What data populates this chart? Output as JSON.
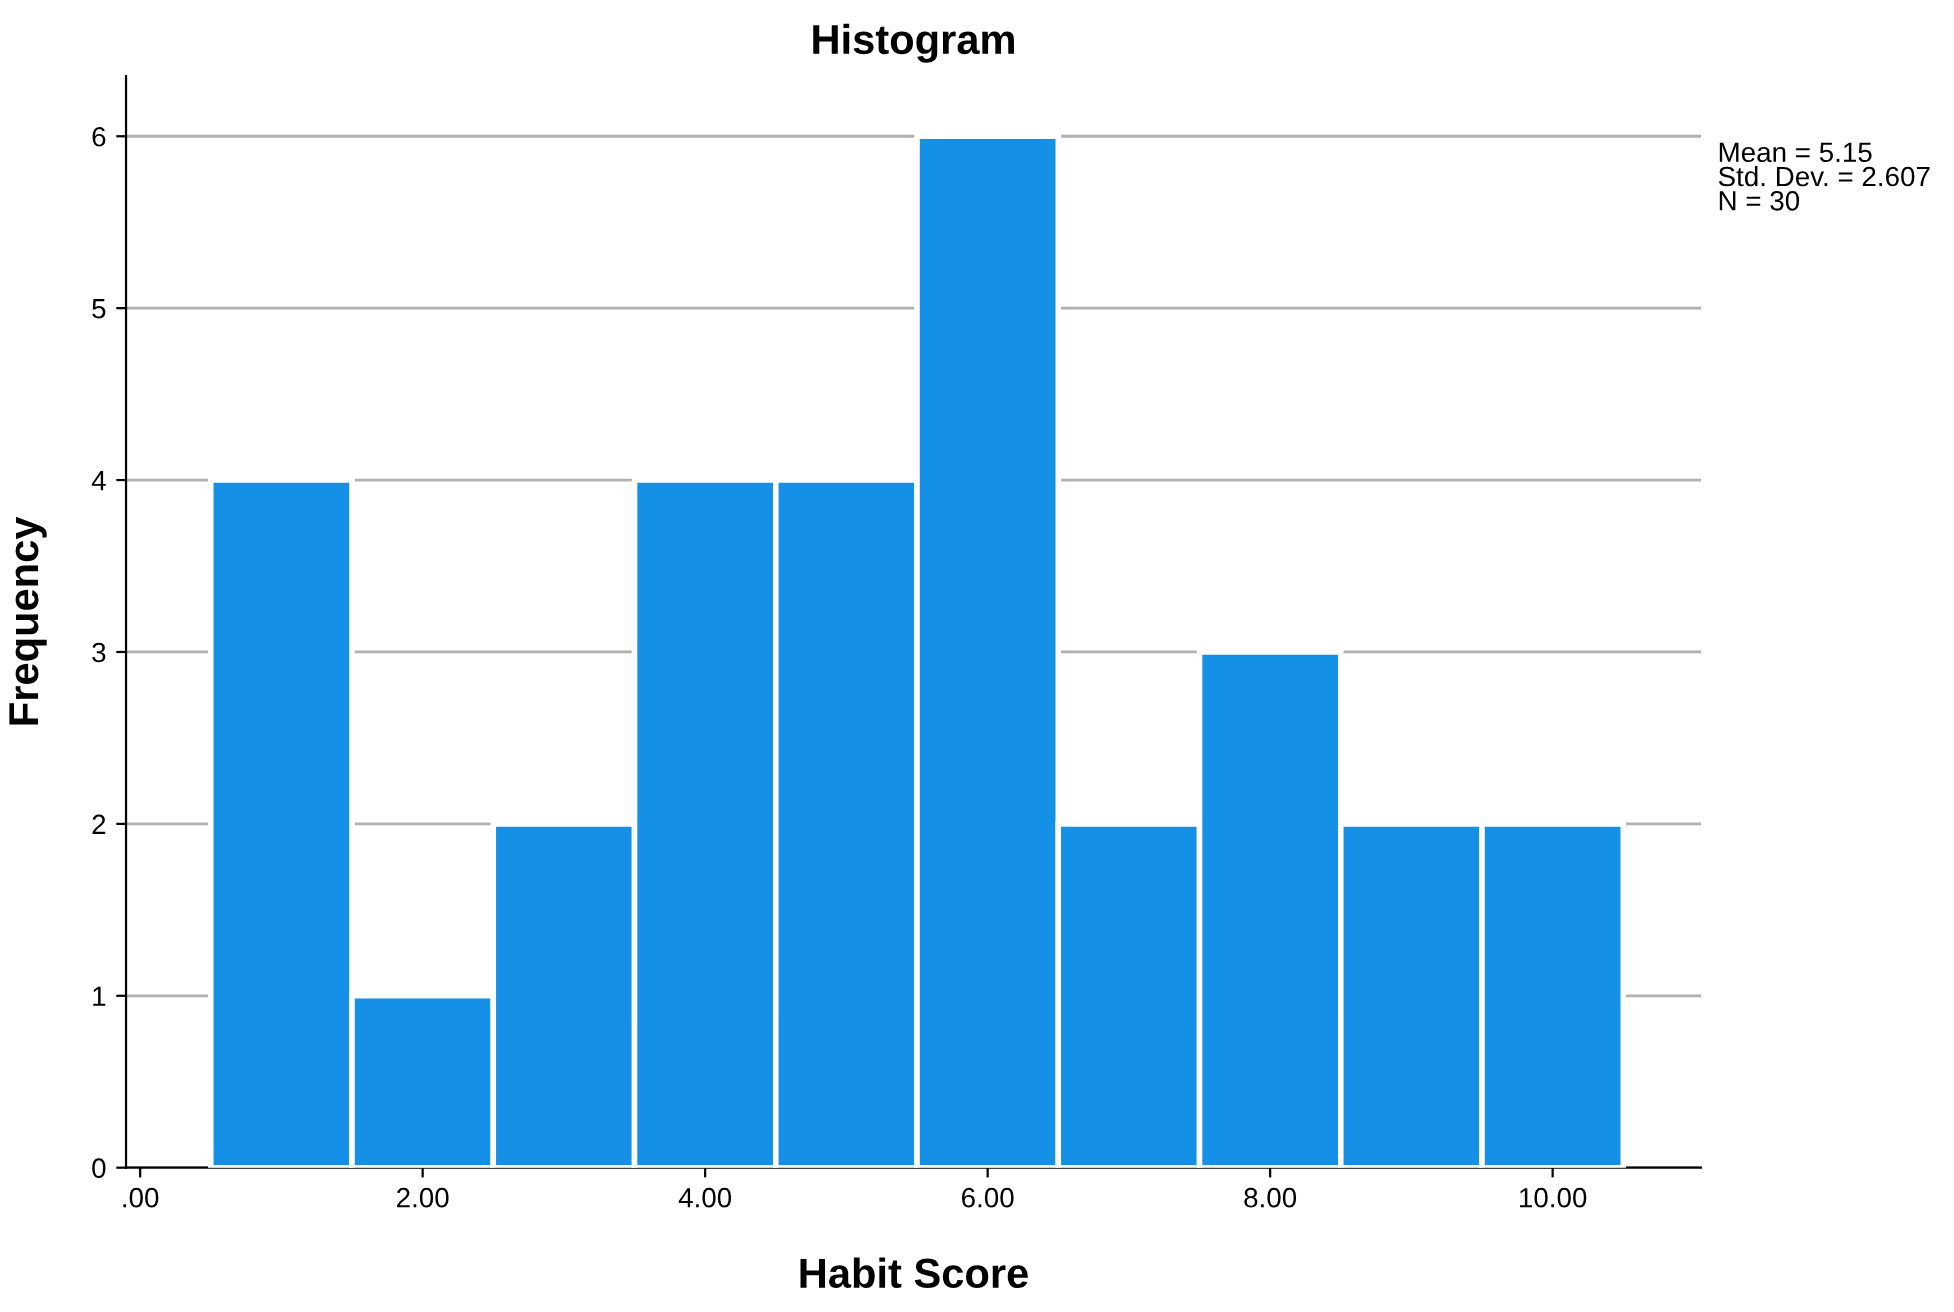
{
  "chart_data": {
    "type": "histogram",
    "title": "Histogram",
    "xlabel": "Habit Score",
    "ylabel": "Frequency",
    "bins": [
      0.5,
      1.5,
      2.5,
      3.5,
      4.5,
      5.5,
      6.5,
      7.5,
      8.5,
      9.5,
      10.5
    ],
    "values": [
      4,
      1,
      2,
      4,
      4,
      6,
      2,
      3,
      2,
      2
    ],
    "color": "#1490e6",
    "xlim": [
      -0.1,
      11.05
    ],
    "xticks": [
      {
        "value": 0,
        "label": ".00"
      },
      {
        "value": 2,
        "label": "2.00"
      },
      {
        "value": 4,
        "label": "4.00"
      },
      {
        "value": 6,
        "label": "6.00"
      },
      {
        "value": 8,
        "label": "8.00"
      },
      {
        "value": 10,
        "label": "10.00"
      }
    ],
    "ylim": [
      0,
      6.35
    ],
    "yticks": [
      0,
      1,
      2,
      3,
      4,
      5,
      6
    ],
    "grid": "y",
    "annotations": [
      "Mean = 5.15",
      "Std. Dev. = 2.607",
      "N = 30"
    ]
  }
}
